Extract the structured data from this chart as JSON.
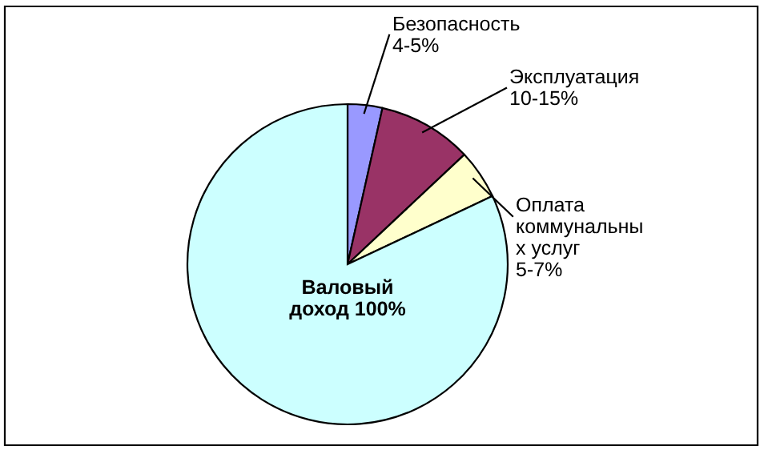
{
  "chart_data": {
    "type": "pie",
    "categories": [
      "Безопасность",
      "Эксплуатация",
      "Оплата\nкоммунальны\nх услуг",
      null
    ],
    "values": [
      3.5,
      9.5,
      5,
      82
    ],
    "value_labels": [
      "4-5%",
      "10-15%",
      "5-7%",
      null
    ],
    "annotations": [
      "Валовый\nдоход 100%"
    ],
    "colors": [
      "#9999ff",
      "#993366",
      "#ffffcc",
      "#ccffff"
    ],
    "legend": false
  }
}
